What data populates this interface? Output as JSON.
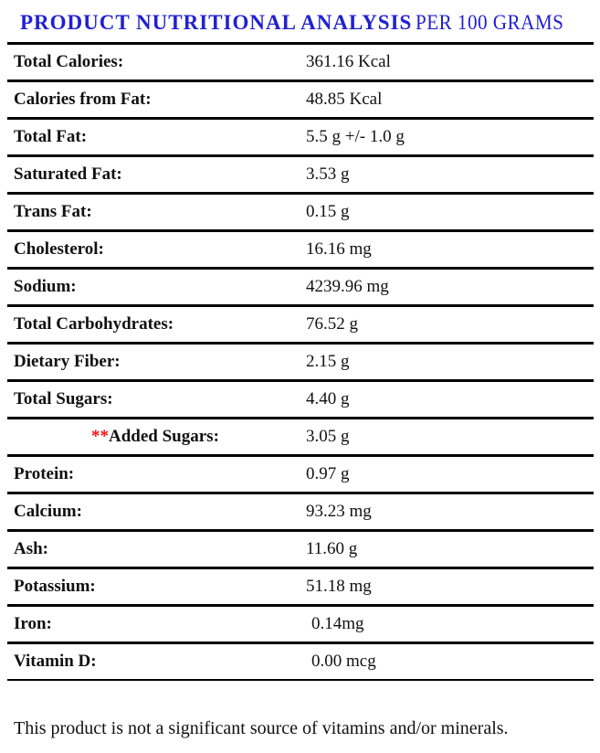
{
  "title": {
    "main": "PRODUCT NUTRITIONAL ANALYSIS",
    "suffix": "PER 100 GRAMS"
  },
  "colors": {
    "title_blue": "#2121D1",
    "asterisk_red": "#EE1111",
    "rule_black": "#000000"
  },
  "table": {
    "rows": [
      {
        "label": "Total Calories:",
        "value": "361.16 Kcal"
      },
      {
        "label": "Calories from Fat:",
        "value": "48.85 Kcal"
      },
      {
        "label": "Total Fat:",
        "value": "5.5 g +/- 1.0 g"
      },
      {
        "label": "Saturated Fat:",
        "value": "3.53 g"
      },
      {
        "label": "Trans Fat:",
        "value": "0.15 g"
      },
      {
        "label": "Cholesterol:",
        "value": "16.16 mg"
      },
      {
        "label": "Sodium:",
        "value": "4239.96 mg"
      },
      {
        "label": "Total Carbohydrates:",
        "value": "76.52 g"
      },
      {
        "label": "Dietary Fiber:",
        "value": "2.15 g"
      },
      {
        "label": "Total Sugars:",
        "value": "4.40 g"
      },
      {
        "label": "Added Sugars:",
        "value": "3.05 g",
        "prefix": "**",
        "indented": true
      },
      {
        "label": "Protein:",
        "value": "0.97 g"
      },
      {
        "label": "Calcium:",
        "value": "93.23 mg"
      },
      {
        "label": "Ash:",
        "value": "11.60 g"
      },
      {
        "label": "Potassium:",
        "value": "51.18 mg"
      },
      {
        "label": "Iron:",
        "value": "0.14mg",
        "value_indent": true
      },
      {
        "label": "Vitamin D:",
        "value": "0.00 mcg",
        "value_indent": true
      }
    ]
  },
  "footer": "This product is not a significant source of vitamins and/or minerals."
}
